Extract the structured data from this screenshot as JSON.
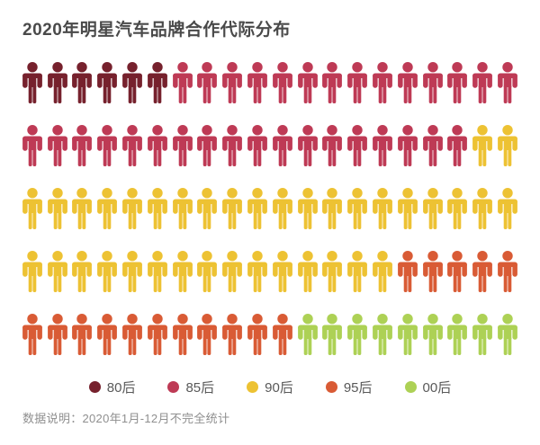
{
  "chart_data": {
    "type": "pictogram",
    "title": "2020年明星汽车品牌合作代际分布",
    "footnote": "数据说明：2020年1月-12月不完全统计",
    "unit_total": 100,
    "rows": 5,
    "cols": 20,
    "legend_position": "bottom",
    "series": [
      {
        "key": "80s",
        "name": "80后",
        "value": 6,
        "color": "#76212D"
      },
      {
        "key": "85s",
        "name": "85后",
        "value": 32,
        "color": "#BE3A55"
      },
      {
        "key": "90s",
        "name": "90后",
        "value": 37,
        "color": "#EDC233"
      },
      {
        "key": "95s",
        "name": "95后",
        "value": 16,
        "color": "#D95B35"
      },
      {
        "key": "00s",
        "name": "00后",
        "value": 9,
        "color": "#ADD155"
      }
    ]
  }
}
